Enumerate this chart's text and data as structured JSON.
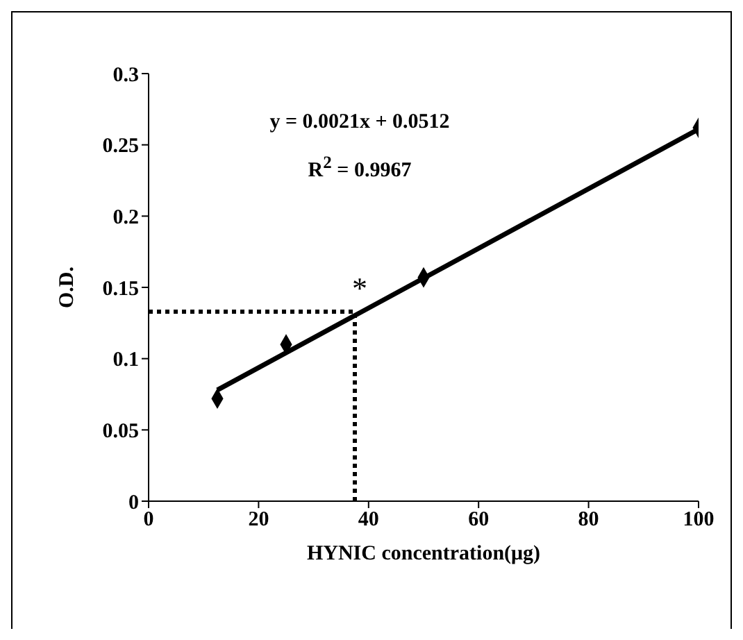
{
  "chart_data": {
    "type": "scatter",
    "xlabel": "HYNIC concentration(μg)",
    "ylabel": "O.D.",
    "xlim": [
      0,
      100
    ],
    "xticks": [
      0,
      20,
      40,
      60,
      80,
      100
    ],
    "ylim": [
      0,
      0.3
    ],
    "yticks": [
      0,
      0.05,
      0.1,
      0.15,
      0.2,
      0.25,
      0.3
    ],
    "series": [
      {
        "color": "#000000",
        "marker": "diamond",
        "x": [
          12.5,
          25,
          50,
          100
        ],
        "values": [
          0.072,
          0.11,
          0.157,
          0.262
        ]
      },
      {
        "type": "line",
        "color": "#000000",
        "line_style": "solid",
        "x": [
          12.5,
          100
        ],
        "values": [
          0.078,
          0.261
        ]
      },
      {
        "type": "line",
        "color": "#000000",
        "line_style": "dotted",
        "x": [
          0,
          37.5,
          37.5
        ],
        "values": [
          0.133,
          0.133,
          0
        ]
      }
    ],
    "annotations": [
      "y = 0.0021x + 0.0512",
      "R$^{2}$ = 0.9967",
      "*"
    ]
  }
}
